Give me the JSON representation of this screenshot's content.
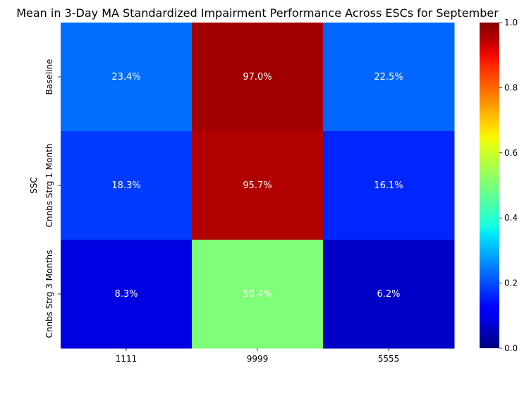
{
  "chart_data": {
    "type": "heatmap",
    "title": "Mean in 3-Day MA Standardized Impairment Performance Across ESCs for September",
    "xlabel": "",
    "ylabel": "SSC",
    "x_categories": [
      "1111",
      "9999",
      "5555"
    ],
    "y_categories": [
      "Baseline",
      "Cnnbs Strg 1 Month",
      "Cnnbs Strg 3 Months"
    ],
    "values": [
      [
        0.234,
        0.97,
        0.225
      ],
      [
        0.183,
        0.957,
        0.161
      ],
      [
        0.083,
        0.504,
        0.062
      ]
    ],
    "annotations": [
      [
        "23.4%",
        "97.0%",
        "22.5%"
      ],
      [
        "18.3%",
        "95.7%",
        "16.1%"
      ],
      [
        "8.3%",
        "50.4%",
        "6.2%"
      ]
    ],
    "colormap": "jet",
    "vmin": 0.0,
    "vmax": 1.0,
    "colorbar_ticks": [
      "0.0",
      "0.2",
      "0.4",
      "0.6",
      "0.8",
      "1.0"
    ],
    "annotation_color": "#ffffff"
  }
}
